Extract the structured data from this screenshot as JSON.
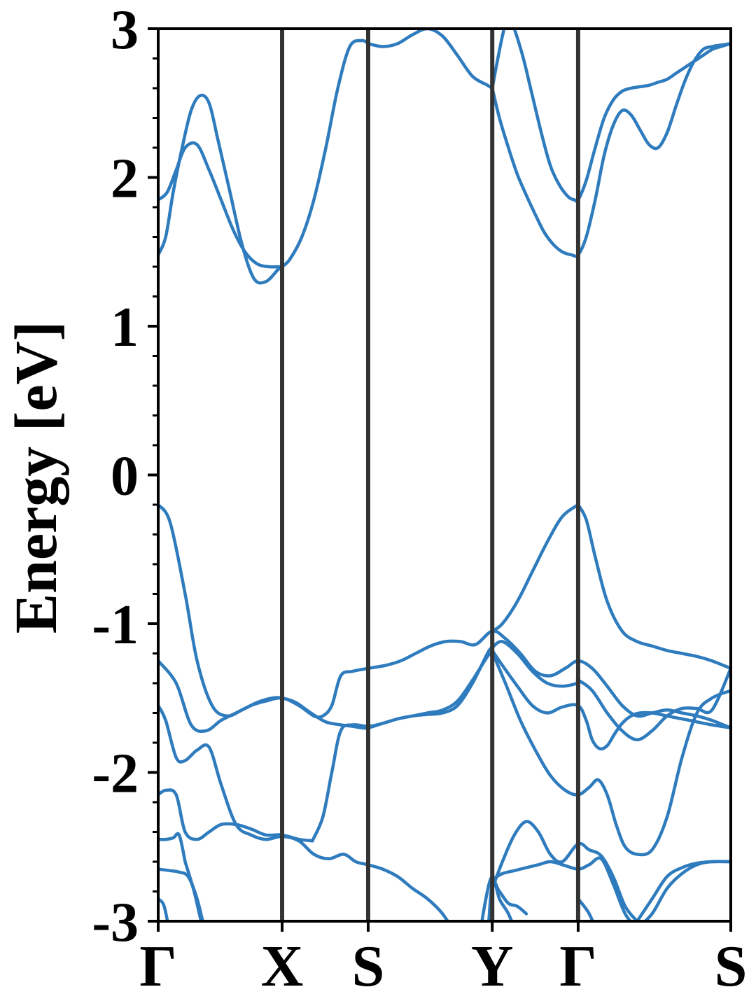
{
  "chart_data": {
    "type": "line",
    "title": "",
    "xlabel": "",
    "ylabel": "Energy [eV]",
    "ylim": [
      -3,
      3
    ],
    "xlim": [
      0,
      3.826
    ],
    "yticks": [
      {
        "value": 3,
        "label": "3"
      },
      {
        "value": 2,
        "label": "2"
      },
      {
        "value": 1,
        "label": "1"
      },
      {
        "value": 0,
        "label": "0"
      },
      {
        "value": -1,
        "label": "-1"
      },
      {
        "value": -2,
        "label": "-2"
      },
      {
        "value": -3,
        "label": "-3"
      }
    ],
    "yminor_step": 0.2,
    "high_symmetry_points": [
      {
        "label": "Γ",
        "x": 0
      },
      {
        "label": "X",
        "x": 0.828
      },
      {
        "label": "S",
        "x": 1.403
      },
      {
        "label": "Y",
        "x": 2.232
      },
      {
        "label": "Γ",
        "x": 2.806
      },
      {
        "label": "S",
        "x": 3.826
      }
    ],
    "line_color": "#2e7bbd",
    "vline_color": "#333333",
    "grid": false,
    "legend": "none",
    "series": [
      {
        "x": [
          0,
          0.08,
          0.18,
          0.26,
          0.36,
          0.46,
          0.56,
          0.66,
          0.76,
          0.828,
          0.92,
          1.02,
          1.12,
          1.22,
          1.3,
          1.36,
          1.403,
          1.5,
          1.6,
          1.7,
          1.8,
          1.9,
          2.0,
          2.1,
          2.2,
          2.232,
          2.3,
          2.4,
          2.5,
          2.6,
          2.7,
          2.8,
          2.806,
          2.9,
          3.0,
          3.1,
          3.2,
          3.3,
          3.4,
          3.5,
          3.6,
          3.7,
          3.826
        ],
        "y": [
          -0.2,
          -0.32,
          -0.8,
          -1.25,
          -1.55,
          -1.62,
          -1.58,
          -1.53,
          -1.5,
          -1.5,
          -1.53,
          -1.6,
          -1.66,
          -1.68,
          -1.69,
          -1.7,
          -1.7,
          -1.67,
          -1.64,
          -1.62,
          -1.61,
          -1.6,
          -1.55,
          -1.4,
          -1.2,
          -1.16,
          -1.12,
          -1.2,
          -1.32,
          -1.4,
          -1.42,
          -1.4,
          -1.38,
          -1.45,
          -1.6,
          -1.72,
          -1.78,
          -1.72,
          -1.62,
          -1.57,
          -1.57,
          -1.58,
          -1.3
        ]
      },
      {
        "x": [
          0,
          0.12,
          0.22,
          0.32,
          0.42,
          0.52,
          0.62,
          0.72,
          0.828,
          0.94,
          1.04,
          1.1,
          1.16,
          1.22,
          1.3,
          1.403,
          1.52,
          1.62,
          1.72,
          1.82,
          1.92,
          2.02,
          2.12,
          2.232,
          2.32,
          2.42,
          2.52,
          2.62,
          2.72,
          2.806,
          2.9,
          3.0,
          3.1,
          3.2,
          3.3,
          3.4,
          3.5,
          3.6,
          3.7,
          3.826
        ],
        "y": [
          -1.25,
          -1.4,
          -1.68,
          -1.72,
          -1.65,
          -1.6,
          -1.55,
          -1.52,
          -1.5,
          -1.55,
          -1.62,
          -1.62,
          -1.55,
          -1.35,
          -1.32,
          -1.3,
          -1.28,
          -1.25,
          -1.2,
          -1.15,
          -1.12,
          -1.12,
          -1.14,
          -1.05,
          -1.1,
          -1.2,
          -1.32,
          -1.35,
          -1.3,
          -1.25,
          -1.3,
          -1.42,
          -1.55,
          -1.62,
          -1.6,
          -1.58,
          -1.6,
          -1.62,
          -1.65,
          -1.7
        ]
      },
      {
        "x": [
          0,
          0.05,
          0.12,
          0.18,
          0.26,
          0.34,
          0.42,
          0.52,
          0.62,
          0.72,
          0.828,
          0.94,
          1.04,
          1.14,
          1.24,
          1.32,
          1.4,
          1.5,
          1.6,
          1.7,
          1.8,
          1.9,
          2.0,
          2.1,
          2.2,
          2.232,
          2.32,
          2.42,
          2.52,
          2.62,
          2.72,
          2.806
        ],
        "y": [
          -1.55,
          -1.65,
          -1.9,
          -1.92,
          -1.85,
          -1.83,
          -2.08,
          -2.35,
          -2.42,
          -2.45,
          -2.43,
          -2.46,
          -2.55,
          -2.58,
          -2.55,
          -2.6,
          -2.62,
          -2.65,
          -2.7,
          -2.78,
          -2.85,
          -2.95,
          -3.1,
          -3.2,
          -3.25,
          -3.3,
          -3.3,
          -3.25,
          -3.2,
          -3.15,
          -3.1,
          -3.05
        ]
      },
      {
        "x": [
          2.232,
          2.3,
          2.4,
          2.5,
          2.6,
          2.7,
          2.806,
          2.86,
          2.9,
          2.95,
          3.0,
          3.05,
          3.1,
          3.16,
          3.22,
          3.3,
          3.4,
          3.5,
          3.6,
          3.7,
          3.826
        ],
        "y": [
          -1.18,
          -1.28,
          -1.42,
          -1.55,
          -1.6,
          -1.56,
          -1.55,
          -1.65,
          -1.78,
          -1.84,
          -1.82,
          -1.74,
          -1.67,
          -1.62,
          -1.6,
          -1.6,
          -1.62,
          -1.64,
          -1.66,
          -1.68,
          -1.7
        ]
      },
      {
        "x": [
          0,
          0.05,
          0.12,
          0.18,
          0.26,
          0.34,
          0.42,
          0.52,
          0.62,
          0.72,
          0.828,
          0.94,
          1.03
        ],
        "y": [
          -2.15,
          -2.12,
          -2.15,
          -2.4,
          -2.45,
          -2.4,
          -2.35,
          -2.35,
          -2.38,
          -2.42,
          -2.42,
          -2.45,
          -2.46
        ]
      },
      {
        "x": [
          1.03,
          1.1,
          1.16,
          1.22,
          1.3,
          1.403,
          1.5,
          1.6,
          1.7,
          1.8,
          1.9,
          2.0,
          2.1,
          2.2,
          2.232
        ],
        "y": [
          -2.46,
          -2.3,
          -2.0,
          -1.72,
          -1.68,
          -1.69,
          -1.67,
          -1.64,
          -1.62,
          -1.6,
          -1.58,
          -1.52,
          -1.38,
          -1.22,
          -1.19
        ]
      },
      {
        "x": [
          2.232,
          2.32,
          2.42,
          2.52,
          2.62,
          2.72,
          2.806,
          2.88,
          2.94,
          3.0,
          3.06,
          3.12,
          3.2,
          3.3,
          3.4,
          3.5,
          3.6,
          3.7,
          3.826
        ],
        "y": [
          -1.19,
          -1.4,
          -1.65,
          -1.85,
          -2.02,
          -2.12,
          -2.15,
          -2.1,
          -2.05,
          -2.15,
          -2.35,
          -2.5,
          -2.55,
          -2.52,
          -2.3,
          -1.9,
          -1.6,
          -1.5,
          -1.45
        ]
      },
      {
        "x": [
          2.806,
          2.7,
          2.6,
          2.5,
          2.4,
          2.3,
          2.232
        ],
        "y": [
          -0.2,
          -0.28,
          -0.45,
          -0.65,
          -0.85,
          -1.0,
          -1.05
        ]
      },
      {
        "x": [
          2.806,
          2.86,
          2.92,
          3.0,
          3.1,
          3.2,
          3.3,
          3.4,
          3.5,
          3.6,
          3.7,
          3.826
        ],
        "y": [
          -0.2,
          -0.3,
          -0.55,
          -0.85,
          -1.05,
          -1.12,
          -1.15,
          -1.18,
          -1.2,
          -1.22,
          -1.25,
          -1.3
        ]
      },
      {
        "x": [
          0,
          0.05,
          0.1,
          0.16,
          0.22,
          0.28,
          0.34,
          0.4,
          0.48,
          0.56,
          0.64,
          0.72,
          0.8,
          0.828,
          0.88,
          0.96,
          1.04,
          1.12,
          1.2,
          1.28,
          1.36,
          1.403
        ],
        "y": [
          1.48,
          1.6,
          1.9,
          2.2,
          2.45,
          2.55,
          2.5,
          2.25,
          1.9,
          1.55,
          1.32,
          1.3,
          1.38,
          1.4,
          1.45,
          1.6,
          1.85,
          2.2,
          2.6,
          2.88,
          2.92,
          2.9
        ]
      },
      {
        "x": [
          0,
          0.06,
          0.12,
          0.18,
          0.26,
          0.34,
          0.42,
          0.5,
          0.58,
          0.66,
          0.74,
          0.828
        ],
        "y": [
          1.85,
          1.9,
          2.05,
          2.2,
          2.22,
          2.05,
          1.85,
          1.65,
          1.5,
          1.42,
          1.4,
          1.4
        ]
      },
      {
        "x": [
          1.403,
          1.5,
          1.6,
          1.7,
          1.8,
          1.9,
          2.0,
          2.1,
          2.2,
          2.232
        ],
        "y": [
          2.9,
          2.88,
          2.9,
          2.96,
          3.0,
          2.95,
          2.82,
          2.68,
          2.62,
          2.6
        ]
      },
      {
        "x": [
          2.232,
          2.28,
          2.34,
          2.4,
          2.46,
          2.52,
          2.58,
          2.64,
          2.7,
          2.76,
          2.806,
          2.86,
          2.92,
          2.98,
          3.04,
          3.1,
          3.16,
          3.22,
          3.28,
          3.34,
          3.4,
          3.46,
          3.52,
          3.58,
          3.64,
          3.7,
          3.76,
          3.826
        ],
        "y": [
          2.6,
          2.4,
          2.2,
          2.02,
          1.88,
          1.75,
          1.63,
          1.55,
          1.5,
          1.48,
          1.48,
          1.6,
          1.85,
          2.15,
          2.35,
          2.45,
          2.42,
          2.32,
          2.22,
          2.2,
          2.3,
          2.48,
          2.65,
          2.78,
          2.86,
          2.88,
          2.89,
          2.9
        ]
      },
      {
        "x": [
          2.232,
          2.26,
          2.3,
          2.34,
          2.38,
          2.44,
          2.5,
          2.56,
          2.62,
          2.68,
          2.74,
          2.78,
          2.806,
          2.86,
          2.92,
          2.98,
          3.04,
          3.1,
          3.16,
          3.22,
          3.28,
          3.34,
          3.4,
          3.46,
          3.52,
          3.58,
          3.64,
          3.7,
          3.76,
          3.826
        ],
        "y": [
          2.6,
          2.75,
          2.95,
          3.1,
          3.0,
          2.8,
          2.55,
          2.3,
          2.08,
          1.95,
          1.87,
          1.85,
          1.85,
          1.98,
          2.2,
          2.4,
          2.52,
          2.58,
          2.6,
          2.61,
          2.62,
          2.64,
          2.66,
          2.7,
          2.74,
          2.78,
          2.82,
          2.86,
          2.88,
          2.9
        ]
      },
      {
        "x": [
          0,
          0.05,
          0.1,
          0.14,
          0.18
        ],
        "y": [
          -2.45,
          -2.45,
          -2.44,
          -2.42,
          -2.6
        ]
      },
      {
        "x": [
          0.18,
          0.24,
          0.3,
          0.36
        ],
        "y": [
          -2.6,
          -2.8,
          -3.05,
          -3.2
        ]
      },
      {
        "x": [
          0,
          0.08,
          0.14,
          0.2,
          0.26,
          0.32
        ],
        "y": [
          -2.65,
          -2.66,
          -2.67,
          -2.7,
          -2.85,
          -3.1
        ]
      },
      {
        "x": [
          0,
          0.04,
          0.08
        ],
        "y": [
          -2.85,
          -2.9,
          -3.1
        ]
      },
      {
        "x": [
          2.232,
          2.3,
          2.38,
          2.46,
          2.54,
          2.62,
          2.7,
          2.806,
          2.88,
          2.96,
          3.04,
          3.12,
          3.2
        ],
        "y": [
          -2.72,
          -2.68,
          -2.66,
          -2.64,
          -2.62,
          -2.6,
          -2.62,
          -2.65,
          -2.62,
          -2.58,
          -2.75,
          -2.95,
          -3.05
        ]
      },
      {
        "x": [
          2.232,
          2.3,
          2.38,
          2.46,
          2.54,
          2.62,
          2.7,
          2.806,
          2.88,
          2.96,
          3.04,
          3.12,
          3.2
        ],
        "y": [
          -2.78,
          -2.6,
          -2.42,
          -2.33,
          -2.4,
          -2.55,
          -2.6,
          -2.48,
          -2.52,
          -2.56,
          -2.7,
          -2.9,
          -3.0
        ]
      },
      {
        "x": [
          3.2,
          3.3,
          3.4,
          3.5,
          3.6,
          3.7,
          3.826
        ],
        "y": [
          -3.05,
          -2.95,
          -2.78,
          -2.68,
          -2.62,
          -2.6,
          -2.6
        ]
      },
      {
        "x": [
          3.2,
          3.3,
          3.4,
          3.5,
          3.6,
          3.7,
          3.826
        ],
        "y": [
          -3.0,
          -2.85,
          -2.7,
          -2.64,
          -2.61,
          -2.6,
          -2.6
        ]
      },
      {
        "x": [
          2.16,
          2.2,
          2.232,
          2.28,
          2.34,
          2.4,
          2.46
        ],
        "y": [
          -3.3,
          -3.1,
          -2.75,
          -2.8,
          -2.88,
          -2.9,
          -2.95
        ]
      },
      {
        "x": [
          2.12,
          2.18,
          2.232,
          2.28,
          2.34,
          2.4
        ],
        "y": [
          -3.3,
          -2.9,
          -2.7,
          -2.85,
          -2.95,
          -3.1
        ]
      },
      {
        "x": [
          2.806,
          2.88,
          2.94,
          3.0
        ],
        "y": [
          -2.85,
          -2.95,
          -3.1,
          -3.3
        ]
      }
    ]
  }
}
